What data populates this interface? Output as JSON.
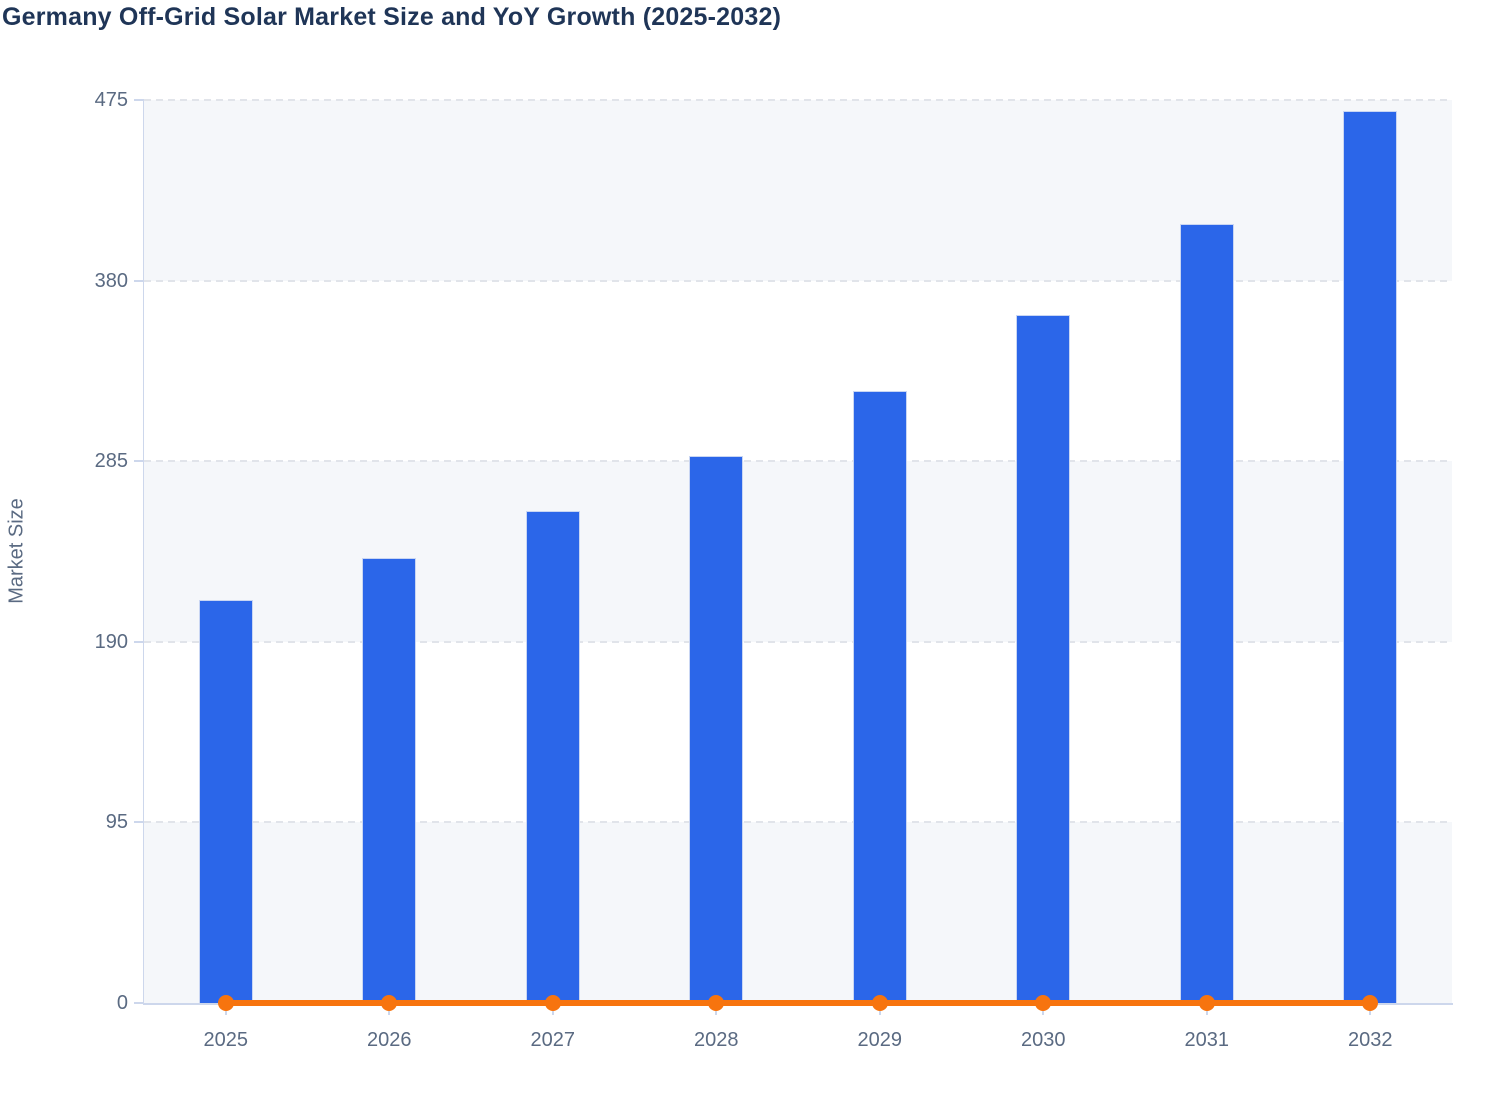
{
  "chart_data": {
    "type": "bar",
    "title": "Germany Off-Grid Solar Market Size and YoY Growth (2025-2032)",
    "ylabel": "Market Size",
    "xlabel": "",
    "categories": [
      "2025",
      "2026",
      "2027",
      "2028",
      "2029",
      "2030",
      "2031",
      "2032"
    ],
    "series": [
      {
        "name": "Market Size",
        "type": "bar",
        "values": [
          212,
          234,
          259,
          288,
          322,
          362,
          410,
          469
        ]
      },
      {
        "name": "YoY Growth",
        "type": "line",
        "values": [
          0,
          0,
          0,
          0,
          0,
          0,
          0,
          0
        ]
      }
    ],
    "ylim": [
      0,
      475
    ],
    "yticks": [
      0,
      95,
      190,
      285,
      380,
      475
    ],
    "grid": "horizontal dashed gridlines with alternating background bands",
    "legend_position": "none",
    "layout_hints": {
      "yoy_line_plotted_at": "flat along zero baseline of primary axis with round markers at each year",
      "bands_alternate_from_bottom": "filled, white, filled, white, filled"
    },
    "colors": {
      "bar": "#2b66e9",
      "bar_border": "#c9d6f3",
      "line": "#f7740e",
      "title": "#1f3557",
      "axis_label": "#5a6a82",
      "axis_line": "#cdd7ec",
      "gridline": "#e1e4ea",
      "band": "#f5f7fa",
      "background": "#ffffff"
    }
  }
}
